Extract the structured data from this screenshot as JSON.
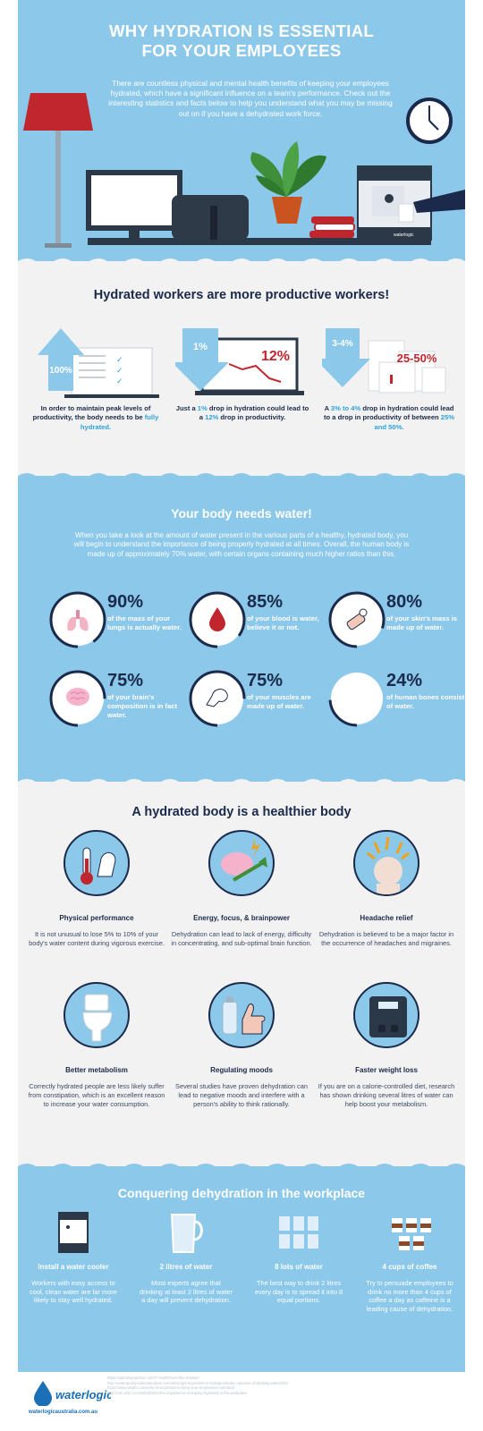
{
  "hero": {
    "title_line1": "WHY HYDRATION IS ESSENTIAL",
    "title_line2": "FOR YOUR EMPLOYEES",
    "intro": "There are countless physical and mental health benefits of keeping your employees hydrated, which have a significant influence on a team's performance. Check out the interesting statistics and facts below to help you understand what you may be missing out on if you have a dehydrated work force.",
    "cooler_brand": "waterlogic"
  },
  "productive": {
    "title": "Hydrated workers are more productive workers!",
    "columns": [
      {
        "big": "100%",
        "pre": "In order to maintain peak levels of productivity, the body needs to be ",
        "hl": "fully hydrated.",
        "post": ""
      },
      {
        "big": "1%",
        "big2": "12%",
        "pre": "Just a ",
        "hl": "1%",
        "mid": " drop in hydration could lead to a ",
        "hl2": "12%",
        "post": " drop in productivity."
      },
      {
        "big": "3-4%",
        "big2": "25-50%",
        "pre": "A ",
        "hl": "3% to 4%",
        "mid": " drop in hydration could lead to a drop in productivity of between ",
        "hl2": "25% and 50%.",
        "post": ""
      }
    ]
  },
  "body_water": {
    "title": "Your body needs water!",
    "intro": "When you take a look at the amount of water present in the various parts of a healthy, hydrated body, you will begin to understand the importance of being properly hydrated at all times. Overall, the human body is made up of approximately 70% water, with certain organs containing much higher ratios than this.",
    "stats": [
      {
        "pct": "90%",
        "value": 90,
        "desc": "of the mass of your lungs is actually water.",
        "icon": "lungs-icon"
      },
      {
        "pct": "85%",
        "value": 85,
        "desc": "of your blood is water, believe it or not.",
        "icon": "blood-drop-icon"
      },
      {
        "pct": "80%",
        "value": 80,
        "desc": "of your skin's mass is made up of water.",
        "icon": "skin-icon"
      },
      {
        "pct": "75%",
        "value": 75,
        "desc": "of your brain's composition is in fact water.",
        "icon": "brain-icon"
      },
      {
        "pct": "75%",
        "value": 75,
        "desc": "of your muscles are made up of water.",
        "icon": "muscle-icon"
      },
      {
        "pct": "24%",
        "value": 24,
        "desc": "of human bones consist of water.",
        "icon": "bone-icon"
      }
    ]
  },
  "healthier": {
    "title": "A hydrated body is a healthier body",
    "items": [
      {
        "title": "Physical performance",
        "desc": "It is not unusual to lose 5% to 10% of your body's water content during vigorous exercise.",
        "icon": "thermometer-arm-icon"
      },
      {
        "title": "Energy, focus, & brainpower",
        "desc": "Dehydration can lead to lack of energy, difficulty in concentrating, and sub-optimal brain function.",
        "icon": "brain-arrow-icon"
      },
      {
        "title": "Headache relief",
        "desc": "Dehydration is believed to be a major factor in the occurrence of headaches and migraines.",
        "icon": "headache-icon"
      },
      {
        "title": "Better metabolism",
        "desc": "Correctly hydrated people are less likely suffer from constipation, which is an excellent reason to increase your water consumption.",
        "icon": "toilet-icon"
      },
      {
        "title": "Regulating moods",
        "desc": "Several studies have proven dehydration can lead to negative moods and interfere with a person's ability to think rationally.",
        "icon": "thumbs-up-icon"
      },
      {
        "title": "Faster weight loss",
        "desc": "If you are on a calorie-controlled diet, research has shown drinking several litres of water can help boost your metabolism.",
        "icon": "scale-icon"
      }
    ]
  },
  "conquer": {
    "title": "Conquering dehydration in the workplace",
    "items": [
      {
        "title": "Install a water cooler",
        "desc": "Workers with easy access to cool, clean water are far more likely to stay well hydrated.",
        "icon": "water-cooler-icon"
      },
      {
        "title": "2 litres of water",
        "desc": "Most experts agree that drinking at least 2 litres of water a day will prevent dehydration.",
        "icon": "jug-icon"
      },
      {
        "title": "8 lots of water",
        "desc": "The best way to drink 2 litres every day is to spread it into 8 equal portions.",
        "icon": "glasses-icon"
      },
      {
        "title": "4 cups of coffee",
        "desc": "Try to persuade employees to drink no more than 4 cups of coffee a day as caffeine is a leading cause of dehydration.",
        "icon": "coffee-cups-icon"
      }
    ]
  },
  "footer": {
    "brand": "waterlogic",
    "url": "waterlogicaustralia.com.au",
    "refs": [
      "https://authoritynutrition.com/7-health-benefits-of-water/",
      "http://waterquality.waterstandard.com/article/gut-ingredient-to-hydration/index-nutrients-of-drinking-water.html",
      "https://www.wsphs.com/why-its-important-to-keep-your-employees-hydrated/",
      "http://crm.shrp.com/2015/03/22/the-importance-of-staying-hydrated-in-the-workplace"
    ]
  },
  "colors": {
    "light_blue": "#8cc8ea",
    "navy": "#1b2a4a",
    "accent_blue": "#2ea3d9",
    "red": "#c0262d",
    "grey_bg": "#f2f2f2"
  }
}
